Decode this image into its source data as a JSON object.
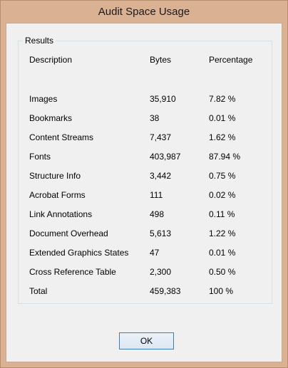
{
  "window": {
    "title": "Audit Space Usage"
  },
  "results": {
    "group_label": "Results",
    "headers": {
      "description": "Description",
      "bytes": "Bytes",
      "percentage": "Percentage"
    },
    "rows": [
      {
        "description": "Images",
        "bytes": "35,910",
        "percentage": "7.82 %"
      },
      {
        "description": "Bookmarks",
        "bytes": "38",
        "percentage": "0.01 %"
      },
      {
        "description": "Content Streams",
        "bytes": "7,437",
        "percentage": "1.62 %"
      },
      {
        "description": "Fonts",
        "bytes": "403,987",
        "percentage": "87.94 %"
      },
      {
        "description": "Structure Info",
        "bytes": "3,442",
        "percentage": "0.75 %"
      },
      {
        "description": "Acrobat Forms",
        "bytes": "111",
        "percentage": "0.02 %"
      },
      {
        "description": "Link Annotations",
        "bytes": "498",
        "percentage": "0.11 %"
      },
      {
        "description": "Document Overhead",
        "bytes": "5,613",
        "percentage": "1.22 %"
      },
      {
        "description": "Extended Graphics States",
        "bytes": "47",
        "percentage": "0.01 %"
      },
      {
        "description": "Cross Reference Table",
        "bytes": "2,300",
        "percentage": "0.50 %"
      },
      {
        "description": "Total",
        "bytes": "459,383",
        "percentage": "100 %"
      }
    ]
  },
  "buttons": {
    "ok_label": "OK"
  }
}
